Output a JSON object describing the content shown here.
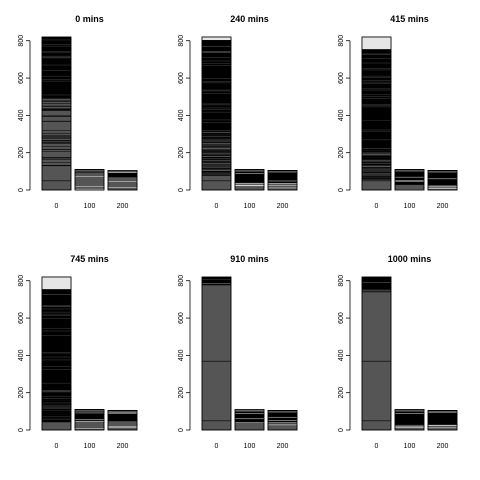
{
  "chart_data": [
    {
      "type": "bar",
      "title": "0 mins",
      "categories": [
        "0",
        "100",
        "200"
      ],
      "values": [
        820,
        110,
        105
      ],
      "ylim": [
        0,
        820
      ],
      "yticks": [
        "0",
        "200",
        "400",
        "600",
        "800"
      ],
      "grid": false
    },
    {
      "type": "bar",
      "title": "240 mins",
      "categories": [
        "0",
        "100",
        "200"
      ],
      "values": [
        820,
        110,
        105
      ],
      "ylim": [
        0,
        820
      ],
      "yticks": [
        "0",
        "200",
        "400",
        "600",
        "800"
      ],
      "grid": false
    },
    {
      "type": "bar",
      "title": "415 mins",
      "categories": [
        "0",
        "100",
        "200"
      ],
      "values": [
        820,
        110,
        105
      ],
      "ylim": [
        0,
        820
      ],
      "yticks": [
        "0",
        "200",
        "400",
        "600",
        "800"
      ],
      "grid": false
    },
    {
      "type": "bar",
      "title": "745 mins",
      "categories": [
        "0",
        "100",
        "200"
      ],
      "values": [
        820,
        110,
        105
      ],
      "ylim": [
        0,
        820
      ],
      "yticks": [
        "0",
        "200",
        "400",
        "600",
        "800"
      ],
      "grid": false
    },
    {
      "type": "bar",
      "title": "910 mins",
      "categories": [
        "0",
        "100",
        "200"
      ],
      "values": [
        820,
        110,
        105
      ],
      "ylim": [
        0,
        820
      ],
      "yticks": [
        "0",
        "200",
        "400",
        "600",
        "800"
      ],
      "grid": false
    },
    {
      "type": "bar",
      "title": "1000 mins",
      "categories": [
        "0",
        "100",
        "200"
      ],
      "values": [
        820,
        110,
        105
      ],
      "ylim": [
        0,
        820
      ],
      "yticks": [
        "0",
        "200",
        "400",
        "600",
        "800"
      ],
      "grid": false
    }
  ],
  "colors": {
    "segment_dark": "#000000",
    "segment_mid": "#555555",
    "segment_light": "#e6e6e6"
  }
}
